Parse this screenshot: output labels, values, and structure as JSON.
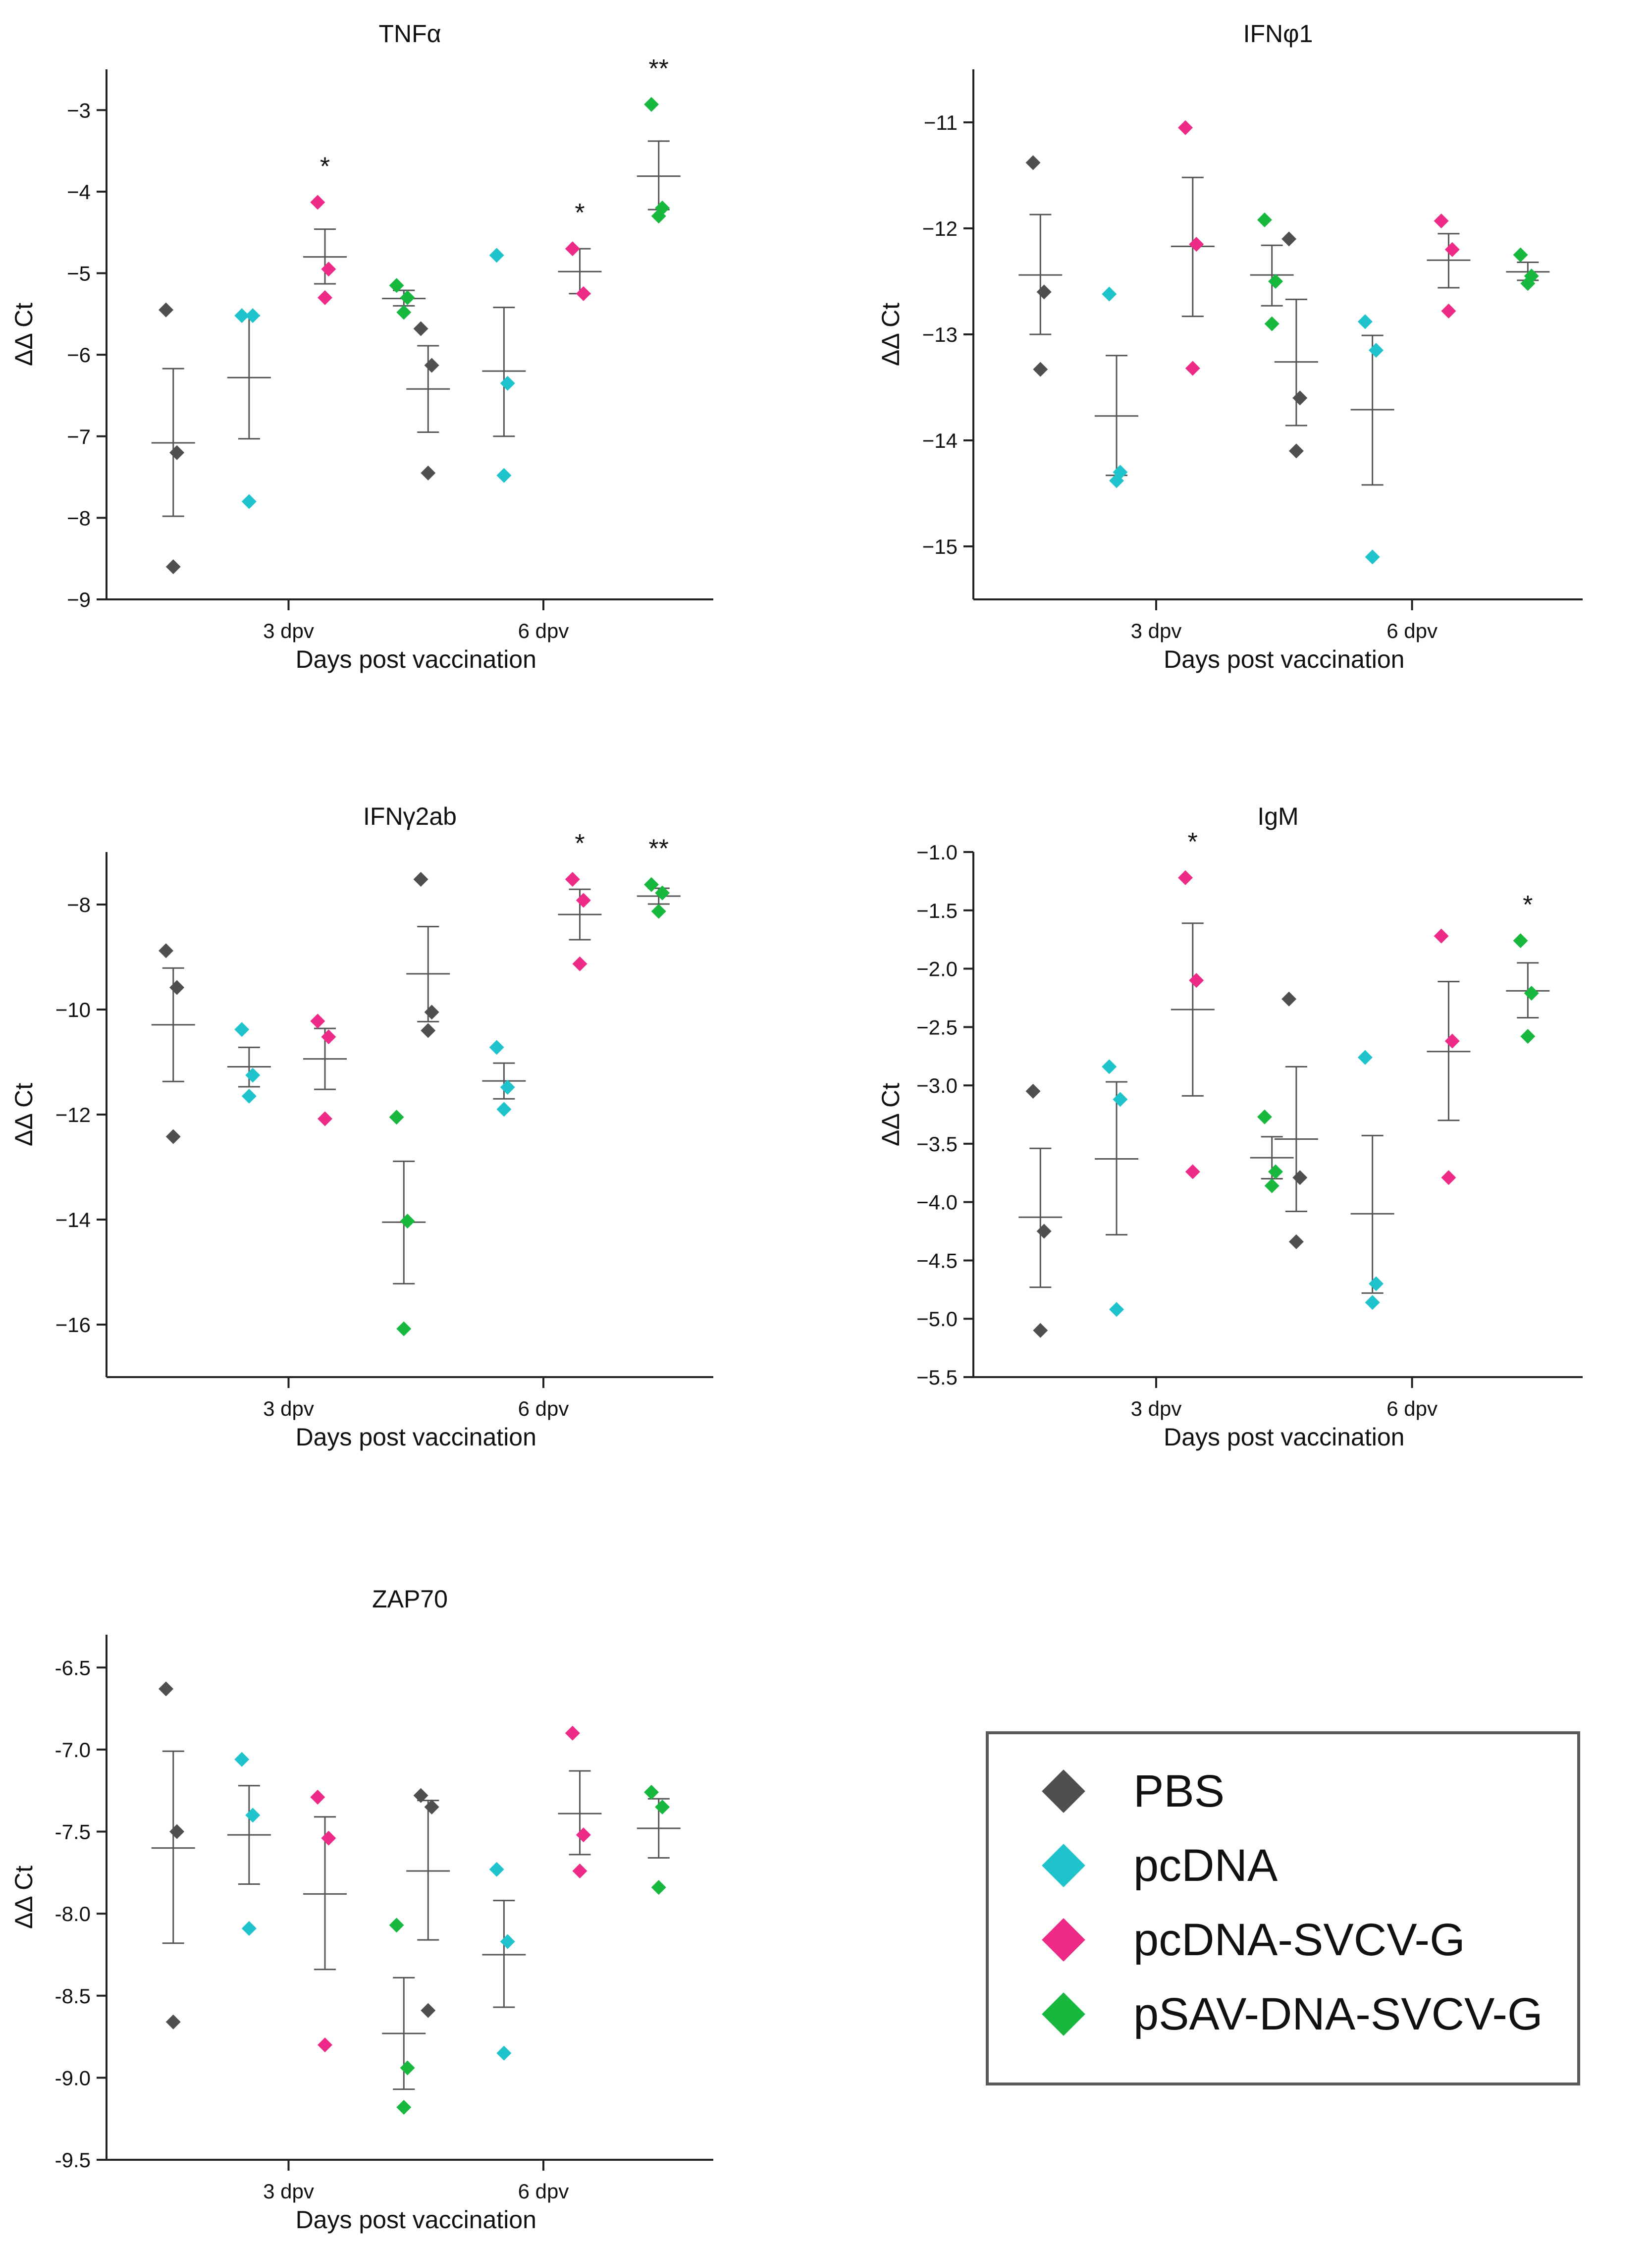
{
  "colors": {
    "PBS": "#4f4f4f",
    "pcDNA": "#1ec3cc",
    "pcDNA-SVCV-G": "#ee2a87",
    "pSAV-DNA-SVCV-G": "#18b83f",
    "axis": "#222222",
    "meanbar": "#555555"
  },
  "legend": {
    "items": [
      {
        "key": "PBS",
        "label": "PBS"
      },
      {
        "key": "pcDNA",
        "label": "pcDNA"
      },
      {
        "key": "pcDNA-SVCV-G",
        "label": "pcDNA-SVCV-G"
      },
      {
        "key": "pSAV-DNA-SVCV-G",
        "label": "pSAV-DNA-SVCV-G"
      }
    ]
  },
  "chart_data": [
    {
      "type": "scatter",
      "title": "TNFα",
      "xlabel": "Days post vaccination",
      "ylabel": "ΔΔ Ct",
      "categories": [
        "3 dpv",
        "6 dpv"
      ],
      "ylim": [
        -9,
        -2.5
      ],
      "yticks": [
        -9,
        -8,
        -7,
        -6,
        -5,
        -4,
        -3
      ],
      "ytick_labels": [
        "−9",
        "−8",
        "−7",
        "−6",
        "−5",
        "−4",
        "−3"
      ],
      "groups": [
        {
          "category": "3 dpv",
          "series": "PBS",
          "points": [
            -5.45,
            -7.2,
            -8.6
          ],
          "mean": -7.08,
          "sem_low": -7.98,
          "sem_high": -6.17,
          "mark": ""
        },
        {
          "category": "3 dpv",
          "series": "pcDNA",
          "points": [
            -5.52,
            -5.52,
            -7.8
          ],
          "mean": -6.28,
          "sem_low": -7.03,
          "sem_high": -5.52,
          "mark": ""
        },
        {
          "category": "3 dpv",
          "series": "pcDNA-SVCV-G",
          "points": [
            -4.13,
            -4.95,
            -5.3
          ],
          "mean": -4.8,
          "sem_low": -5.13,
          "sem_high": -4.46,
          "mark": "*"
        },
        {
          "category": "3 dpv",
          "series": "pSAV-DNA-SVCV-G",
          "points": [
            -5.15,
            -5.3,
            -5.48
          ],
          "mean": -5.31,
          "sem_low": -5.4,
          "sem_high": -5.21,
          "mark": ""
        },
        {
          "category": "6 dpv",
          "series": "PBS",
          "points": [
            -5.68,
            -6.13,
            -7.45
          ],
          "mean": -6.42,
          "sem_low": -6.95,
          "sem_high": -5.89,
          "mark": ""
        },
        {
          "category": "6 dpv",
          "series": "pcDNA",
          "points": [
            -4.78,
            -6.35,
            -7.48
          ],
          "mean": -6.2,
          "sem_low": -7.0,
          "sem_high": -5.42,
          "mark": ""
        },
        {
          "category": "6 dpv",
          "series": "pcDNA-SVCV-G",
          "points": [
            -4.7,
            -5.25
          ],
          "mean": -4.98,
          "sem_low": -5.25,
          "sem_high": -4.7,
          "mark": "*"
        },
        {
          "category": "6 dpv",
          "series": "pSAV-DNA-SVCV-G",
          "points": [
            -2.93,
            -4.2,
            -4.3
          ],
          "mean": -3.81,
          "sem_low": -4.22,
          "sem_high": -3.38,
          "mark": "**"
        }
      ]
    },
    {
      "type": "scatter",
      "title": "IFNφ1",
      "xlabel": "Days post vaccination",
      "ylabel": "ΔΔ Ct",
      "categories": [
        "3 dpv",
        "6 dpv"
      ],
      "ylim": [
        -15.5,
        -10.5
      ],
      "yticks": [
        -15,
        -14,
        -13,
        -12,
        -11
      ],
      "ytick_labels": [
        "−15",
        "−14",
        "−13",
        "−12",
        "−11"
      ],
      "groups": [
        {
          "category": "3 dpv",
          "series": "PBS",
          "points": [
            -11.38,
            -12.6,
            -13.33
          ],
          "mean": -12.44,
          "sem_low": -13.0,
          "sem_high": -11.87,
          "mark": ""
        },
        {
          "category": "3 dpv",
          "series": "pcDNA",
          "points": [
            -12.62,
            -14.3,
            -14.38
          ],
          "mean": -13.77,
          "sem_low": -14.33,
          "sem_high": -13.2,
          "mark": ""
        },
        {
          "category": "3 dpv",
          "series": "pcDNA-SVCV-G",
          "points": [
            -11.05,
            -12.15,
            -13.32
          ],
          "mean": -12.17,
          "sem_low": -12.83,
          "sem_high": -11.52,
          "mark": ""
        },
        {
          "category": "3 dpv",
          "series": "pSAV-DNA-SVCV-G",
          "points": [
            -11.92,
            -12.5,
            -12.9
          ],
          "mean": -12.44,
          "sem_low": -12.73,
          "sem_high": -12.16,
          "mark": ""
        },
        {
          "category": "6 dpv",
          "series": "PBS",
          "points": [
            -12.1,
            -13.6,
            -14.1
          ],
          "mean": -13.26,
          "sem_low": -13.86,
          "sem_high": -12.67,
          "mark": ""
        },
        {
          "category": "6 dpv",
          "series": "pcDNA",
          "points": [
            -12.88,
            -13.15,
            -15.1
          ],
          "mean": -13.71,
          "sem_low": -14.42,
          "sem_high": -13.01,
          "mark": ""
        },
        {
          "category": "6 dpv",
          "series": "pcDNA-SVCV-G",
          "points": [
            -11.93,
            -12.2,
            -12.78
          ],
          "mean": -12.3,
          "sem_low": -12.56,
          "sem_high": -12.05,
          "mark": ""
        },
        {
          "category": "6 dpv",
          "series": "pSAV-DNA-SVCV-G",
          "points": [
            -12.25,
            -12.45,
            -12.52
          ],
          "mean": -12.41,
          "sem_low": -12.49,
          "sem_high": -12.32,
          "mark": ""
        }
      ]
    },
    {
      "type": "scatter",
      "title": "IFNγ2ab",
      "xlabel": "Days post vaccination",
      "ylabel": "ΔΔ Ct",
      "categories": [
        "3 dpv",
        "6 dpv"
      ],
      "ylim": [
        -17,
        -7
      ],
      "yticks": [
        -16,
        -14,
        -12,
        -10,
        -8
      ],
      "ytick_labels": [
        "−16",
        "−14",
        "−12",
        "−10",
        "−8"
      ],
      "groups": [
        {
          "category": "3 dpv",
          "series": "PBS",
          "points": [
            -8.88,
            -9.58,
            -12.42
          ],
          "mean": -10.29,
          "sem_low": -11.37,
          "sem_high": -9.21,
          "mark": ""
        },
        {
          "category": "3 dpv",
          "series": "pcDNA",
          "points": [
            -10.38,
            -11.25,
            -11.65
          ],
          "mean": -11.09,
          "sem_low": -11.47,
          "sem_high": -10.72,
          "mark": ""
        },
        {
          "category": "3 dpv",
          "series": "pcDNA-SVCV-G",
          "points": [
            -10.22,
            -10.52,
            -12.08
          ],
          "mean": -10.94,
          "sem_low": -11.52,
          "sem_high": -10.36,
          "mark": ""
        },
        {
          "category": "3 dpv",
          "series": "pSAV-DNA-SVCV-G",
          "points": [
            -12.05,
            -14.03,
            -16.08
          ],
          "mean": -14.05,
          "sem_low": -15.22,
          "sem_high": -12.89,
          "mark": ""
        },
        {
          "category": "6 dpv",
          "series": "PBS",
          "points": [
            -7.52,
            -10.05,
            -10.4
          ],
          "mean": -9.32,
          "sem_low": -10.23,
          "sem_high": -8.42,
          "mark": ""
        },
        {
          "category": "6 dpv",
          "series": "pcDNA",
          "points": [
            -10.72,
            -11.48,
            -11.9
          ],
          "mean": -11.36,
          "sem_low": -11.7,
          "sem_high": -11.02,
          "mark": ""
        },
        {
          "category": "6 dpv",
          "series": "pcDNA-SVCV-G",
          "points": [
            -7.52,
            -7.92,
            -9.13
          ],
          "mean": -8.19,
          "sem_low": -8.67,
          "sem_high": -7.71,
          "mark": "*"
        },
        {
          "category": "6 dpv",
          "series": "pSAV-DNA-SVCV-G",
          "points": [
            -7.62,
            -7.78,
            -8.13
          ],
          "mean": -7.84,
          "sem_low": -7.99,
          "sem_high": -7.69,
          "mark": "**"
        }
      ]
    },
    {
      "type": "scatter",
      "title": "IgM",
      "xlabel": "Days post vaccination",
      "ylabel": "ΔΔ Ct",
      "categories": [
        "3 dpv",
        "6 dpv"
      ],
      "ylim": [
        -5.5,
        -1.0
      ],
      "yticks": [
        -5.5,
        -5.0,
        -4.5,
        -4.0,
        -3.5,
        -3.0,
        -2.5,
        -2.0,
        -1.5,
        -1.0
      ],
      "ytick_labels": [
        "−5.5",
        "−5.0",
        "−4.5",
        "−4.0",
        "−3.5",
        "−3.0",
        "−2.5",
        "−2.0",
        "−1.5",
        "−1.0"
      ],
      "groups": [
        {
          "category": "3 dpv",
          "series": "PBS",
          "points": [
            -3.05,
            -4.25,
            -5.1
          ],
          "mean": -4.13,
          "sem_low": -4.73,
          "sem_high": -3.54,
          "mark": ""
        },
        {
          "category": "3 dpv",
          "series": "pcDNA",
          "points": [
            -2.84,
            -3.12,
            -4.92
          ],
          "mean": -3.63,
          "sem_low": -4.28,
          "sem_high": -2.97,
          "mark": ""
        },
        {
          "category": "3 dpv",
          "series": "pcDNA-SVCV-G",
          "points": [
            -1.22,
            -2.1,
            -3.74
          ],
          "mean": -2.35,
          "sem_low": -3.09,
          "sem_high": -1.61,
          "mark": "*"
        },
        {
          "category": "3 dpv",
          "series": "pSAV-DNA-SVCV-G",
          "points": [
            -3.27,
            -3.74,
            -3.86
          ],
          "mean": -3.62,
          "sem_low": -3.8,
          "sem_high": -3.44,
          "mark": ""
        },
        {
          "category": "6 dpv",
          "series": "PBS",
          "points": [
            -2.26,
            -3.79,
            -4.34
          ],
          "mean": -3.46,
          "sem_low": -4.08,
          "sem_high": -2.84,
          "mark": ""
        },
        {
          "category": "6 dpv",
          "series": "pcDNA",
          "points": [
            -2.76,
            -4.7,
            -4.86
          ],
          "mean": -4.1,
          "sem_low": -4.78,
          "sem_high": -3.43,
          "mark": ""
        },
        {
          "category": "6 dpv",
          "series": "pcDNA-SVCV-G",
          "points": [
            -1.72,
            -2.62,
            -3.79
          ],
          "mean": -2.71,
          "sem_low": -3.3,
          "sem_high": -2.11,
          "mark": ""
        },
        {
          "category": "6 dpv",
          "series": "pSAV-DNA-SVCV-G",
          "points": [
            -1.76,
            -2.21,
            -2.58
          ],
          "mean": -2.19,
          "sem_low": -2.42,
          "sem_high": -1.95,
          "mark": "*"
        }
      ]
    },
    {
      "type": "scatter",
      "title": "ZAP70",
      "xlabel": "Days post vaccination",
      "ylabel": "ΔΔ Ct",
      "categories": [
        "3 dpv",
        "6 dpv"
      ],
      "ylim": [
        -9.5,
        -6.3
      ],
      "yticks": [
        -9.5,
        -9.0,
        -8.5,
        -8.0,
        -7.5,
        -7.0,
        -6.5
      ],
      "ytick_labels": [
        "-9.5",
        "-9.0",
        "-8.5",
        "-8.0",
        "-7.5",
        "-7.0",
        "-6.5"
      ],
      "groups": [
        {
          "category": "3 dpv",
          "series": "PBS",
          "points": [
            -6.63,
            -7.5,
            -8.66
          ],
          "mean": -7.6,
          "sem_low": -8.18,
          "sem_high": -7.01,
          "mark": ""
        },
        {
          "category": "3 dpv",
          "series": "pcDNA",
          "points": [
            -7.06,
            -7.4,
            -8.09
          ],
          "mean": -7.52,
          "sem_low": -7.82,
          "sem_high": -7.22,
          "mark": ""
        },
        {
          "category": "3 dpv",
          "series": "pcDNA-SVCV-G",
          "points": [
            -7.29,
            -7.54,
            -8.8
          ],
          "mean": -7.88,
          "sem_low": -8.34,
          "sem_high": -7.41,
          "mark": ""
        },
        {
          "category": "3 dpv",
          "series": "pSAV-DNA-SVCV-G",
          "points": [
            -8.07,
            -8.94,
            -9.18
          ],
          "mean": -8.73,
          "sem_low": -9.07,
          "sem_high": -8.39,
          "mark": ""
        },
        {
          "category": "6 dpv",
          "series": "PBS",
          "points": [
            -7.28,
            -7.35,
            -8.59
          ],
          "mean": -7.74,
          "sem_low": -8.16,
          "sem_high": -7.31,
          "mark": ""
        },
        {
          "category": "6 dpv",
          "series": "pcDNA",
          "points": [
            -7.73,
            -8.17,
            -8.85
          ],
          "mean": -8.25,
          "sem_low": -8.57,
          "sem_high": -7.92,
          "mark": ""
        },
        {
          "category": "6 dpv",
          "series": "pcDNA-SVCV-G",
          "points": [
            -6.9,
            -7.52,
            -7.74
          ],
          "mean": -7.39,
          "sem_low": -7.64,
          "sem_high": -7.13,
          "mark": ""
        },
        {
          "category": "6 dpv",
          "series": "pSAV-DNA-SVCV-G",
          "points": [
            -7.26,
            -7.35,
            -7.84
          ],
          "mean": -7.48,
          "sem_low": -7.66,
          "sem_high": -7.3,
          "mark": ""
        }
      ]
    }
  ]
}
